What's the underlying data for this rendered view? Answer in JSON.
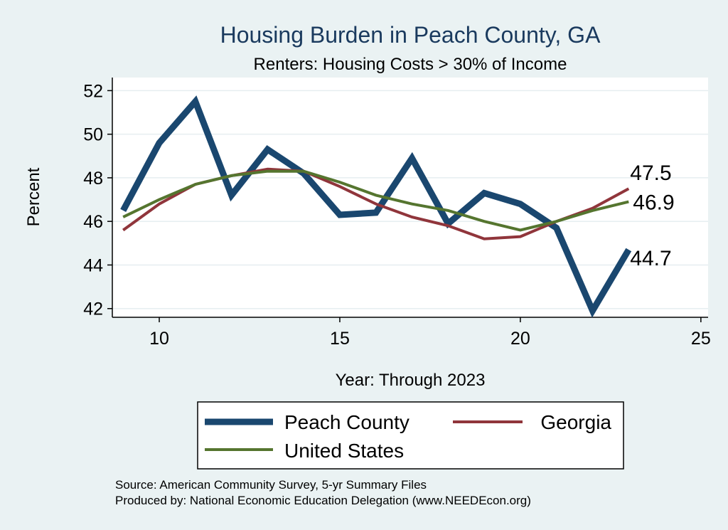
{
  "chart_data": {
    "type": "line",
    "title": "Housing Burden in Peach County, GA",
    "subtitle": "Renters: Housing Costs > 30% of Income",
    "xlabel": "Year: Through 2023",
    "ylabel": "Percent",
    "xlim": [
      8.7,
      25.2
    ],
    "ylim": [
      41.6,
      52.6
    ],
    "xticks": [
      10,
      15,
      20,
      25
    ],
    "yticks": [
      42,
      44,
      46,
      48,
      50,
      52
    ],
    "grid": true,
    "legend_position": "bottom",
    "x": [
      9,
      10,
      11,
      12,
      13,
      14,
      15,
      16,
      17,
      18,
      19,
      20,
      21,
      22,
      23
    ],
    "series": [
      {
        "name": "Peach County",
        "color": "#1a476f",
        "values": [
          46.5,
          49.6,
          51.5,
          47.2,
          49.3,
          48.2,
          46.3,
          46.4,
          48.9,
          45.9,
          47.3,
          46.8,
          45.7,
          41.9,
          44.7
        ],
        "end_label": "44.7"
      },
      {
        "name": "Georgia",
        "color": "#90353b",
        "values": [
          45.6,
          46.8,
          47.7,
          48.1,
          48.4,
          48.3,
          47.6,
          46.8,
          46.2,
          45.8,
          45.2,
          45.3,
          46.0,
          46.6,
          47.5
        ],
        "end_label": "47.5"
      },
      {
        "name": "United States",
        "color": "#55752f",
        "values": [
          46.2,
          47.0,
          47.7,
          48.1,
          48.3,
          48.3,
          47.8,
          47.2,
          46.8,
          46.5,
          46.0,
          45.6,
          46.0,
          46.5,
          46.9
        ],
        "end_label": "46.9"
      }
    ],
    "notes": [
      "Source: American Community Survey, 5-yr Summary Files",
      "Produced by: National Economic Education Delegation (www.NEEDEcon.org)"
    ]
  },
  "colors": {
    "page_background": "#eaf2f3",
    "plot_background": "#ffffff",
    "grid": "#e6eef0",
    "title": "#1a3a5e"
  }
}
